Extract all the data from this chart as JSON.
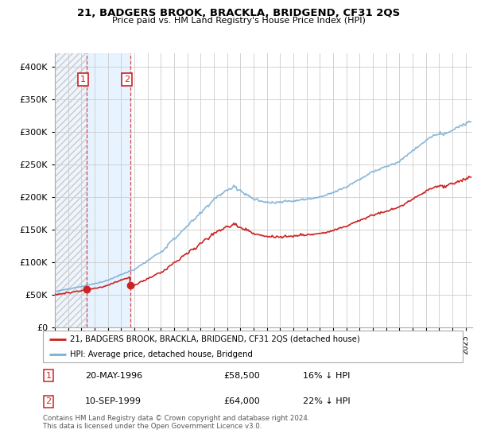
{
  "title": "21, BADGERS BROOK, BRACKLA, BRIDGEND, CF31 2QS",
  "subtitle": "Price paid vs. HM Land Registry's House Price Index (HPI)",
  "legend_line1": "21, BADGERS BROOK, BRACKLA, BRIDGEND, CF31 2QS (detached house)",
  "legend_line2": "HPI: Average price, detached house, Bridgend",
  "table_row1": [
    "1",
    "20-MAY-1996",
    "£58,500",
    "16% ↓ HPI"
  ],
  "table_row2": [
    "2",
    "10-SEP-1999",
    "£64,000",
    "22% ↓ HPI"
  ],
  "footnote": "Contains HM Land Registry data © Crown copyright and database right 2024.\nThis data is licensed under the Open Government Licence v3.0.",
  "hpi_color": "#7bafd4",
  "price_color": "#cc2222",
  "sale1_date_num": 1996.38,
  "sale1_price": 58500,
  "sale2_date_num": 1999.69,
  "sale2_price": 64000,
  "ylim": [
    0,
    420000
  ],
  "xlim_start": 1994.0,
  "xlim_end": 2025.5,
  "background_color": "#ffffff",
  "grid_color": "#cccccc",
  "hatch_color": "#bbccdd",
  "shade_color": "#ddeeff"
}
